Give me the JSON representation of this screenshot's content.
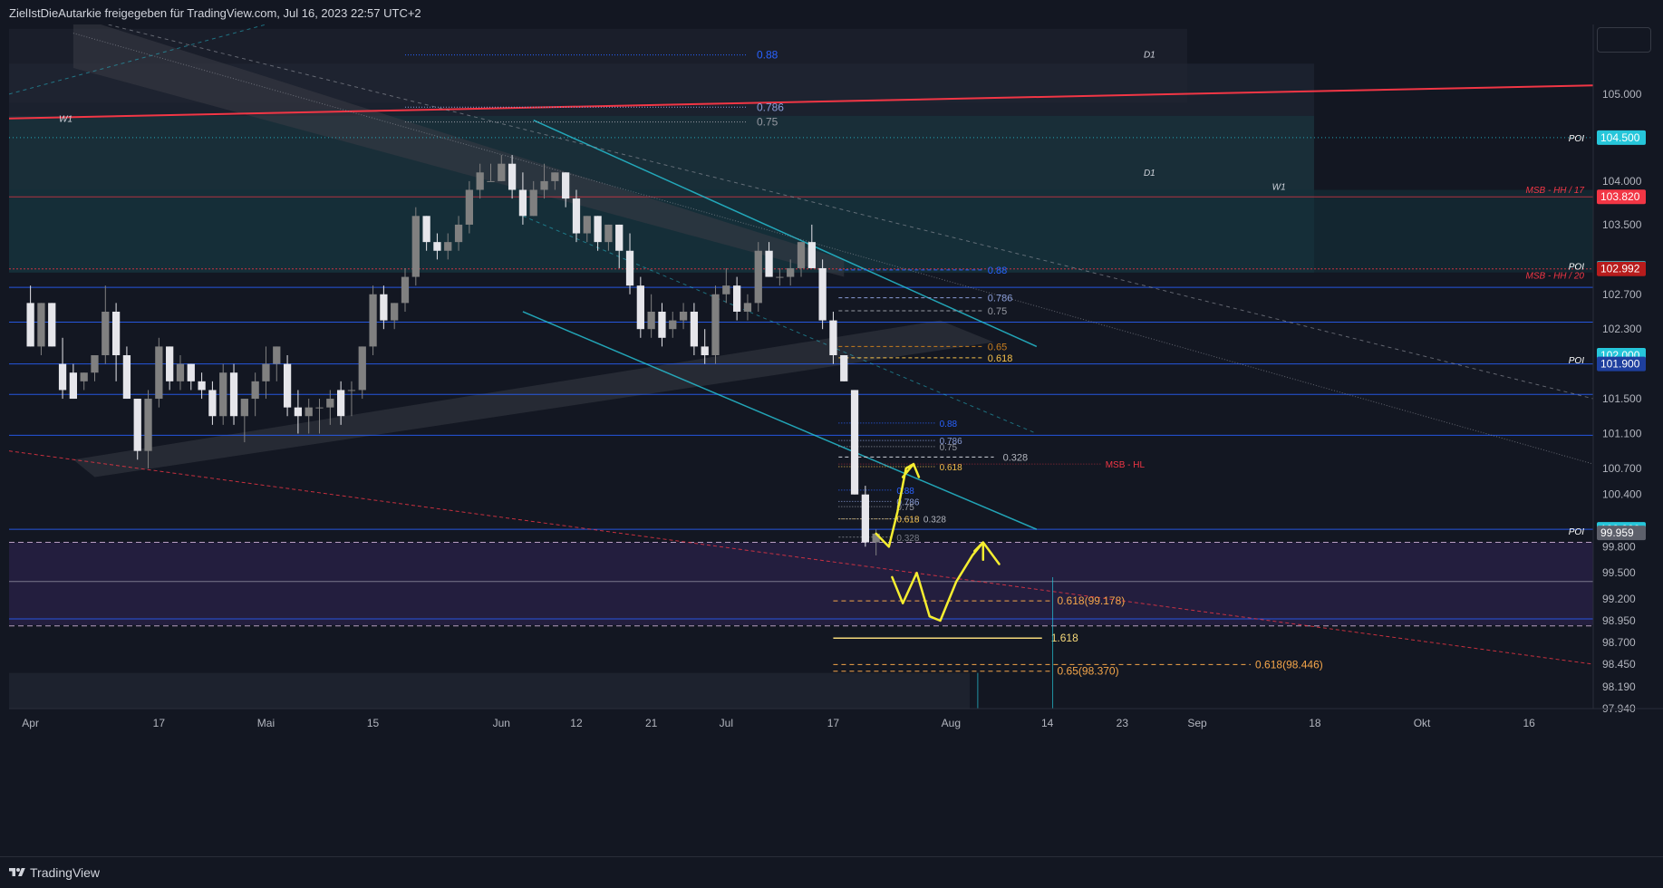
{
  "header": {
    "title": "ZielIstDieAutarkie freigegeben für TradingView.com, Jul 16, 2023 22:57 UTC+2"
  },
  "footer": {
    "brand": "TradingView"
  },
  "colors": {
    "background": "#131722",
    "up": "#808080",
    "down": "#e6e6eb",
    "accent_cyan": "#26c6da",
    "red": "#f23645",
    "blue": "#2962ff",
    "yellow": "#f5ee30"
  },
  "chart_data": {
    "type": "candlestick",
    "ylim": [
      97.94,
      105.8
    ],
    "y_ticks": [
      105.0,
      104.0,
      103.5,
      102.7,
      102.3,
      101.5,
      101.1,
      100.7,
      100.4,
      99.8,
      99.5,
      99.2,
      98.95,
      98.7,
      98.45,
      98.19,
      97.94
    ],
    "y_tick_labels": [
      "105.000",
      "104.000",
      "103.500",
      "102.700",
      "102.300",
      "101.500",
      "101.100",
      "100.700",
      "100.400",
      "99.800",
      "99.500",
      "99.200",
      "98.950",
      "98.700",
      "98.450",
      "98.190",
      "97.940"
    ],
    "x_ticks": [
      {
        "label": "Apr",
        "x": 0
      },
      {
        "label": "17",
        "x": 12
      },
      {
        "label": "Mai",
        "x": 22
      },
      {
        "label": "15",
        "x": 32
      },
      {
        "label": "Jun",
        "x": 44
      },
      {
        "label": "12",
        "x": 51
      },
      {
        "label": "21",
        "x": 58
      },
      {
        "label": "Jul",
        "x": 65
      },
      {
        "label": "17",
        "x": 75
      },
      {
        "label": "Aug",
        "x": 86
      },
      {
        "label": "14",
        "x": 95
      },
      {
        "label": "23",
        "x": 102
      },
      {
        "label": "Sep",
        "x": 109
      },
      {
        "label": "18",
        "x": 120
      },
      {
        "label": "Okt",
        "x": 130
      },
      {
        "label": "16",
        "x": 140
      }
    ],
    "x_range": [
      -2,
      146
    ],
    "candles": [
      [
        0,
        102.6,
        102.8,
        102.1,
        102.1
      ],
      [
        1,
        102.1,
        102.6,
        102.0,
        102.6
      ],
      [
        2,
        102.6,
        102.6,
        102.1,
        102.1
      ],
      [
        3,
        101.9,
        102.2,
        101.5,
        101.6
      ],
      [
        4,
        101.8,
        101.9,
        101.5,
        101.5
      ],
      [
        5,
        101.7,
        101.8,
        101.6,
        101.8
      ],
      [
        6,
        101.8,
        102.0,
        101.7,
        102.0
      ],
      [
        7,
        102.0,
        102.8,
        101.9,
        102.5
      ],
      [
        8,
        102.5,
        102.6,
        101.7,
        102.0
      ],
      [
        9,
        102.0,
        102.1,
        101.5,
        101.5
      ],
      [
        10,
        101.5,
        101.5,
        100.8,
        100.9
      ],
      [
        11,
        100.9,
        101.6,
        100.7,
        101.5
      ],
      [
        12,
        101.5,
        102.2,
        101.4,
        102.1
      ],
      [
        13,
        102.1,
        102.1,
        101.6,
        101.7
      ],
      [
        14,
        101.7,
        102.0,
        101.6,
        101.9
      ],
      [
        15,
        101.9,
        101.9,
        101.6,
        101.7
      ],
      [
        16,
        101.7,
        101.8,
        101.5,
        101.6
      ],
      [
        17,
        101.6,
        101.7,
        101.2,
        101.3
      ],
      [
        18,
        101.3,
        101.9,
        101.2,
        101.8
      ],
      [
        19,
        101.8,
        101.9,
        101.2,
        101.3
      ],
      [
        20,
        101.3,
        101.5,
        101.0,
        101.5
      ],
      [
        21,
        101.5,
        101.8,
        101.3,
        101.7
      ],
      [
        22,
        101.7,
        102.1,
        101.5,
        101.9
      ],
      [
        23,
        101.9,
        102.1,
        101.7,
        102.1
      ],
      [
        24,
        101.9,
        102.0,
        101.3,
        101.4
      ],
      [
        25,
        101.4,
        101.6,
        101.1,
        101.3
      ],
      [
        26,
        101.3,
        101.5,
        101.1,
        101.4
      ],
      [
        27,
        101.4,
        101.5,
        101.1,
        101.4
      ],
      [
        28,
        101.4,
        101.6,
        101.2,
        101.5
      ],
      [
        29,
        101.6,
        101.7,
        101.2,
        101.3
      ],
      [
        30,
        101.6,
        101.7,
        101.3,
        101.6
      ],
      [
        31,
        101.6,
        102.1,
        101.5,
        102.1
      ],
      [
        32,
        102.1,
        102.8,
        102.0,
        102.7
      ],
      [
        33,
        102.7,
        102.8,
        102.3,
        102.4
      ],
      [
        34,
        102.4,
        102.6,
        102.3,
        102.6
      ],
      [
        35,
        102.6,
        103.0,
        102.5,
        102.9
      ],
      [
        36,
        102.9,
        103.7,
        102.8,
        103.6
      ],
      [
        37,
        103.6,
        103.6,
        103.2,
        103.3
      ],
      [
        38,
        103.3,
        103.4,
        103.1,
        103.2
      ],
      [
        39,
        103.2,
        103.4,
        103.1,
        103.3
      ],
      [
        40,
        103.3,
        103.6,
        103.2,
        103.5
      ],
      [
        41,
        103.5,
        104.0,
        103.4,
        103.9
      ],
      [
        42,
        103.9,
        104.2,
        103.8,
        104.1
      ],
      [
        43,
        104.0,
        104.2,
        104.0,
        104.0
      ],
      [
        44,
        104.0,
        104.3,
        104.0,
        104.2
      ],
      [
        45,
        104.2,
        104.3,
        103.8,
        103.9
      ],
      [
        46,
        103.9,
        104.1,
        103.5,
        103.6
      ],
      [
        47,
        103.6,
        104.0,
        103.6,
        103.9
      ],
      [
        48,
        103.9,
        104.2,
        103.8,
        104.0
      ],
      [
        49,
        104.0,
        104.1,
        103.9,
        104.1
      ],
      [
        50,
        104.1,
        104.1,
        103.7,
        103.8
      ],
      [
        51,
        103.8,
        103.9,
        103.3,
        103.4
      ],
      [
        52,
        103.4,
        103.6,
        103.3,
        103.6
      ],
      [
        53,
        103.6,
        103.6,
        103.2,
        103.3
      ],
      [
        54,
        103.3,
        103.5,
        103.2,
        103.5
      ],
      [
        55,
        103.5,
        103.5,
        103.0,
        103.2
      ],
      [
        56,
        103.2,
        103.4,
        102.7,
        102.8
      ],
      [
        57,
        102.8,
        102.9,
        102.2,
        102.3
      ],
      [
        58,
        102.3,
        102.7,
        102.2,
        102.5
      ],
      [
        59,
        102.5,
        102.6,
        102.1,
        102.2
      ],
      [
        60,
        102.3,
        102.5,
        102.2,
        102.4
      ],
      [
        61,
        102.4,
        102.6,
        102.3,
        102.5
      ],
      [
        62,
        102.5,
        102.6,
        102.0,
        102.1
      ],
      [
        63,
        102.1,
        102.3,
        101.9,
        102.0
      ],
      [
        64,
        102.0,
        102.8,
        101.9,
        102.7
      ],
      [
        65,
        102.7,
        103.0,
        102.6,
        102.8
      ],
      [
        66,
        102.8,
        102.9,
        102.4,
        102.5
      ],
      [
        67,
        102.5,
        102.7,
        102.4,
        102.6
      ],
      [
        68,
        102.6,
        103.3,
        102.5,
        103.2
      ],
      [
        69,
        103.2,
        103.3,
        102.9,
        102.9
      ],
      [
        70,
        102.9,
        103.0,
        102.8,
        102.9
      ],
      [
        71,
        102.9,
        103.1,
        102.8,
        103.0
      ],
      [
        72,
        103.0,
        103.3,
        102.9,
        103.3
      ],
      [
        73,
        103.3,
        103.5,
        103.0,
        103.0
      ],
      [
        74,
        103.0,
        103.1,
        102.3,
        102.4
      ],
      [
        75,
        102.4,
        102.5,
        101.9,
        102.0
      ],
      [
        76,
        102.0,
        102.0,
        101.7,
        101.7
      ],
      [
        77,
        101.6,
        101.6,
        100.4,
        100.4
      ],
      [
        78,
        100.4,
        100.5,
        99.8,
        99.85
      ],
      [
        79,
        99.85,
        100.0,
        99.7,
        99.95
      ]
    ],
    "annotations": [
      "0.88",
      "0.786",
      "0.75",
      "D1",
      "D1",
      "W1",
      "W1",
      "POI",
      "POI",
      "POI",
      "POI",
      "MSB - HH / 17",
      "MSB - HH / 20",
      "MSB - HL",
      "0.65",
      "0.618",
      "0.328",
      "1.618",
      "0.618(99.178)",
      "0.618(98.446)",
      "0.65(98.370)"
    ],
    "price_labels": [
      {
        "text": "104.500",
        "value": 104.5,
        "color": "#26c6da"
      },
      {
        "text": "103.820",
        "value": 103.82,
        "color": "#f23645"
      },
      {
        "text": "103.000",
        "value": 103.0,
        "color": "#26c6da"
      },
      {
        "text": "102.992",
        "value": 102.992,
        "color": "#b71c1c"
      },
      {
        "text": "102.000",
        "value": 102.0,
        "color": "#26c6da"
      },
      {
        "text": "101.900",
        "value": 101.9,
        "color": "#1e3f9e"
      },
      {
        "text": "100.000",
        "value": 100.0,
        "color": "#26c6da"
      },
      {
        "text": "99.959",
        "value": 99.959,
        "color": "#5d606b"
      }
    ]
  }
}
